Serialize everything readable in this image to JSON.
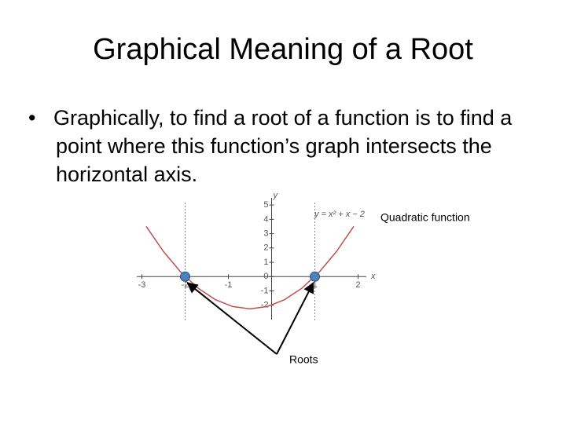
{
  "title": "Graphical Meaning of a Root",
  "bullet": "Graphically, to find a root of a function is to find a point where this function’s graph intersects the horizontal axis.",
  "chart_data": {
    "type": "line",
    "x_label": "x",
    "y_label": "y",
    "function_label": "y = x² + x − 2",
    "annotations": [
      "Quadratic function",
      "Roots"
    ],
    "x": [
      -2.9,
      -2.5,
      -2.1,
      -1.7,
      -1.3,
      -0.9,
      -0.5,
      -0.1,
      0.3,
      0.7,
      1.1,
      1.5,
      1.9
    ],
    "series": [
      {
        "color": "#c0504d",
        "values": [
          3.51,
          1.75,
          0.31,
          -0.81,
          -1.61,
          -2.09,
          -2.25,
          -2.09,
          -1.61,
          -0.81,
          0.31,
          1.75,
          3.51
        ]
      }
    ],
    "roots": {
      "color": "#4f81bd",
      "x": [
        -2,
        1
      ],
      "values": [
        0,
        0
      ]
    },
    "xlim": [
      -3.3,
      2.3
    ],
    "ylim": [
      -3,
      5.5
    ],
    "xticks": [
      -3,
      -2,
      -1,
      1,
      2
    ],
    "yticks": [
      -2,
      -1,
      0,
      1,
      2,
      3,
      4,
      5
    ]
  }
}
